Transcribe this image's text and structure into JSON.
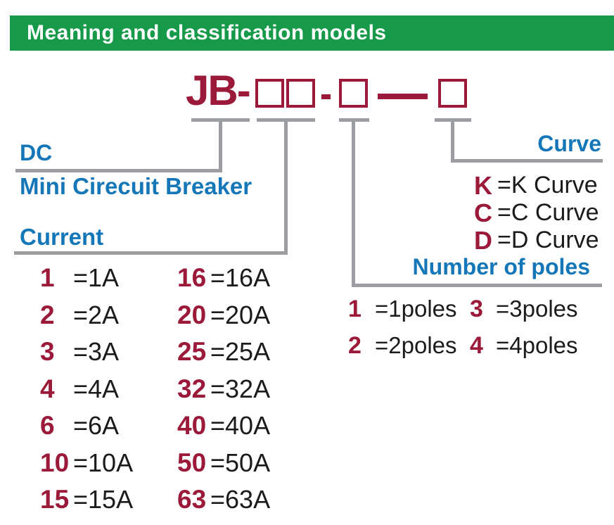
{
  "header": {
    "title": "Meaning and classification models"
  },
  "model_code": {
    "prefix": "JB-",
    "short_dash": "-",
    "long_dash": "—",
    "box_count": 4
  },
  "sections": {
    "dc": {
      "label_line1": "DC",
      "label_line2": "Mini Cirecuit Breaker"
    },
    "current": {
      "label": "Current",
      "left": [
        {
          "code": "1",
          "meaning": "=1A"
        },
        {
          "code": "2",
          "meaning": "=2A"
        },
        {
          "code": "3",
          "meaning": "=3A"
        },
        {
          "code": "4",
          "meaning": "=4A"
        },
        {
          "code": "6",
          "meaning": "=6A"
        },
        {
          "code": "10",
          "meaning": "=10A"
        },
        {
          "code": "15",
          "meaning": "=15A"
        }
      ],
      "right": [
        {
          "code": "16",
          "meaning": "=16A"
        },
        {
          "code": "20",
          "meaning": "=20A"
        },
        {
          "code": "25",
          "meaning": "=25A"
        },
        {
          "code": "32",
          "meaning": "=32A"
        },
        {
          "code": "40",
          "meaning": "=40A"
        },
        {
          "code": "50",
          "meaning": "=50A"
        },
        {
          "code": "63",
          "meaning": "=63A"
        }
      ]
    },
    "poles": {
      "label": "Number of poles",
      "rows": [
        [
          {
            "code": "1",
            "meaning": "=1poles"
          },
          {
            "code": "3",
            "meaning": "=3poles"
          }
        ],
        [
          {
            "code": "2",
            "meaning": "=2poles"
          },
          {
            "code": "4",
            "meaning": "=4poles"
          }
        ]
      ]
    },
    "curve": {
      "label": "Curve",
      "options": [
        {
          "code": "K",
          "meaning": "=K Curve"
        },
        {
          "code": "C",
          "meaning": "=C Curve"
        },
        {
          "code": "D",
          "meaning": "=D Curve"
        }
      ]
    }
  },
  "colors": {
    "header_green": "#169a49",
    "accent_blue": "#1577b8",
    "brand_maroon": "#9b1a3a",
    "line_gray": "#9b9da0",
    "text_black": "#1b1b1b"
  }
}
